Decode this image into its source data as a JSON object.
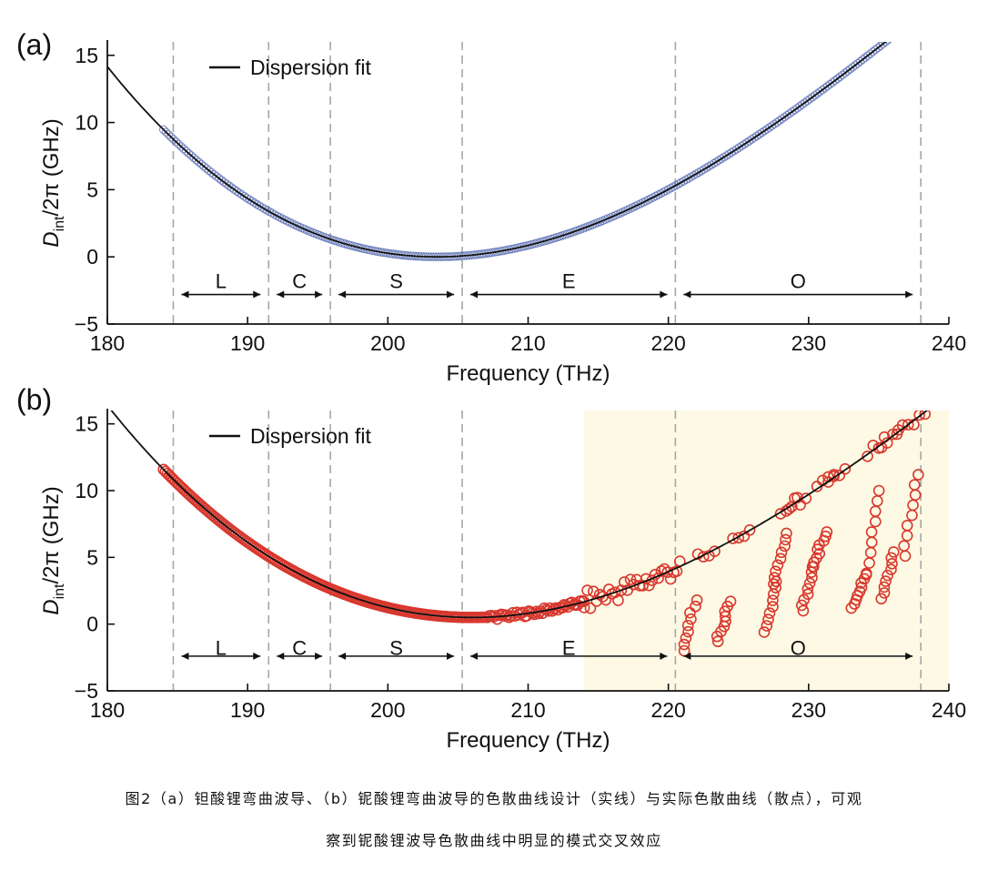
{
  "chart_data": [
    {
      "panel_label": "(a)",
      "type": "scatter",
      "xlabel": "Frequency (THz)",
      "ylabel_main": "D",
      "ylabel_sub": "int",
      "ylabel_rest": "/2π (GHz)",
      "xlim": [
        180,
        240
      ],
      "ylim": [
        -5,
        16
      ],
      "xticks": [
        180,
        190,
        200,
        210,
        220,
        230,
        240
      ],
      "yticks": [
        -5,
        0,
        5,
        10,
        15
      ],
      "ytick_labels": [
        "−5",
        "0",
        "5",
        "10",
        "15"
      ],
      "legend": "Dispersion fit",
      "legend_position": "top-left",
      "fit": {
        "x0": 203.5,
        "a": 0.0214,
        "b": -0.00018,
        "y0": 0,
        "x_range": [
          180,
          240
        ]
      },
      "bands": [
        {
          "label": "L",
          "start": 184.7,
          "end": 191.5
        },
        {
          "label": "C",
          "start": 191.5,
          "end": 195.9
        },
        {
          "label": "S",
          "start": 195.9,
          "end": 205.3
        },
        {
          "label": "E",
          "start": 205.3,
          "end": 220.5
        },
        {
          "label": "O",
          "start": 220.5,
          "end": 238.0
        }
      ],
      "band_boundaries": [
        184.7,
        191.5,
        195.9,
        205.3,
        220.5,
        238.0
      ],
      "points": {
        "x_range": [
          184.0,
          238.0
        ],
        "marker_color": "#5b6fb4",
        "note_deviation": "none"
      }
    },
    {
      "panel_label": "(b)",
      "type": "scatter",
      "xlabel": "Frequency (THz)",
      "ylabel_main": "D",
      "ylabel_sub": "int",
      "ylabel_rest": "/2π (GHz)",
      "xlim": [
        180,
        240
      ],
      "ylim": [
        -5,
        16
      ],
      "xticks": [
        180,
        190,
        200,
        210,
        220,
        230,
        240
      ],
      "yticks": [
        -5,
        0,
        5,
        10,
        15
      ],
      "ytick_labels": [
        "−5",
        "0",
        "5",
        "10",
        "15"
      ],
      "legend": "Dispersion fit",
      "legend_position": "top-left",
      "fit": {
        "x0": 206,
        "a": 0.0196,
        "b": -0.00015,
        "y0": 0.5,
        "x_range": [
          180,
          240
        ]
      },
      "highlight_region": {
        "x_start": 214,
        "x_end": 240,
        "color": "#fdf9e4"
      },
      "bands": [
        {
          "label": "L",
          "start": 184.7,
          "end": 191.5
        },
        {
          "label": "C",
          "start": 191.5,
          "end": 195.9
        },
        {
          "label": "S",
          "start": 195.9,
          "end": 205.3
        },
        {
          "label": "E",
          "start": 205.3,
          "end": 220.5
        },
        {
          "label": "O",
          "start": 220.5,
          "end": 238.0
        }
      ],
      "band_boundaries": [
        184.7,
        191.5,
        195.9,
        205.3,
        220.5,
        238.0
      ],
      "points": {
        "x_range": [
          184.0,
          238.0
        ],
        "marker_color": "#d8382e"
      },
      "anticrossings": [
        {
          "x": 221.5,
          "y_range": [
            -2.0,
            1.8
          ]
        },
        {
          "x": 224.0,
          "y_range": [
            -1.3,
            1.7
          ]
        },
        {
          "x": 227.4,
          "y_range": [
            -0.6,
            3.2
          ]
        },
        {
          "x": 228.0,
          "y_range": [
            3.0,
            6.8
          ]
        },
        {
          "x": 230.0,
          "y_range": [
            1.0,
            4.3
          ]
        },
        {
          "x": 230.8,
          "y_range": [
            4.3,
            6.9
          ]
        },
        {
          "x": 233.6,
          "y_range": [
            1.2,
            3.7
          ]
        },
        {
          "x": 234.6,
          "y_range": [
            3.8,
            10.0
          ]
        },
        {
          "x": 235.7,
          "y_range": [
            1.9,
            5.4
          ]
        },
        {
          "x": 237.3,
          "y_range": [
            5.1,
            11.2
          ]
        }
      ]
    }
  ],
  "caption": {
    "line1": "图2（a）钽酸锂弯曲波导、（b）铌酸锂弯曲波导的色散曲线设计（实线）与实际色散曲线（散点），可观",
    "line2": "察到铌酸锂波导色散曲线中明显的模式交叉效应"
  }
}
